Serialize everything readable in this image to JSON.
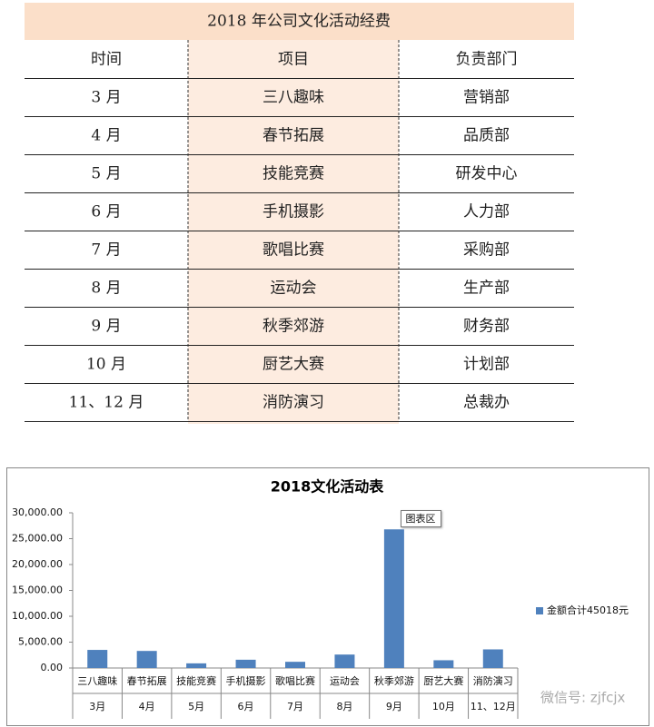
{
  "table": {
    "title": "2018 年公司文化活动经费",
    "columns": [
      "时间",
      "项目",
      "负责部门"
    ],
    "rows": [
      [
        "3 月",
        "三八趣味",
        "营销部"
      ],
      [
        "4 月",
        "春节拓展",
        "品质部"
      ],
      [
        "5 月",
        "技能竞赛",
        "研发中心"
      ],
      [
        "6 月",
        "手机摄影",
        "人力部"
      ],
      [
        "7 月",
        "歌唱比赛",
        "采购部"
      ],
      [
        "8 月",
        "运动会",
        "生产部"
      ],
      [
        "9 月",
        "秋季郊游",
        "财务部"
      ],
      [
        "10 月",
        "厨艺大赛",
        "计划部"
      ],
      [
        "11、12 月",
        "消防演习",
        "总裁办"
      ]
    ]
  },
  "chart_data": {
    "type": "bar",
    "title": "2018文化活动表",
    "categories": [
      "三八趣味",
      "春节拓展",
      "技能竞赛",
      "手机摄影",
      "歌唱比赛",
      "运动会",
      "秋季郊游",
      "厨艺大赛",
      "消防演习"
    ],
    "category_groups": [
      "3月",
      "4月",
      "5月",
      "6月",
      "7月",
      "8月",
      "9月",
      "10月",
      "11、12月"
    ],
    "series": [
      {
        "name": "金额合计45018元",
        "color": "#4f81bd",
        "values": [
          3500,
          3300,
          900,
          1600,
          1200,
          2600,
          26800,
          1500,
          3600
        ]
      }
    ],
    "ylim": [
      0,
      30000
    ],
    "yticks": [
      {
        "value": 0,
        "label": "0.00"
      },
      {
        "value": 5000,
        "label": "5,000.00"
      },
      {
        "value": 10000,
        "label": "10,000.00"
      },
      {
        "value": 15000,
        "label": "15,000.00"
      },
      {
        "value": 20000,
        "label": "20,000.00"
      },
      {
        "value": 25000,
        "label": "25,000.00"
      },
      {
        "value": 30000,
        "label": "30,000.00"
      }
    ],
    "grid": false,
    "legend": "right",
    "annotations": [
      "图表区"
    ]
  },
  "watermark": "微信号: zjfcjx"
}
